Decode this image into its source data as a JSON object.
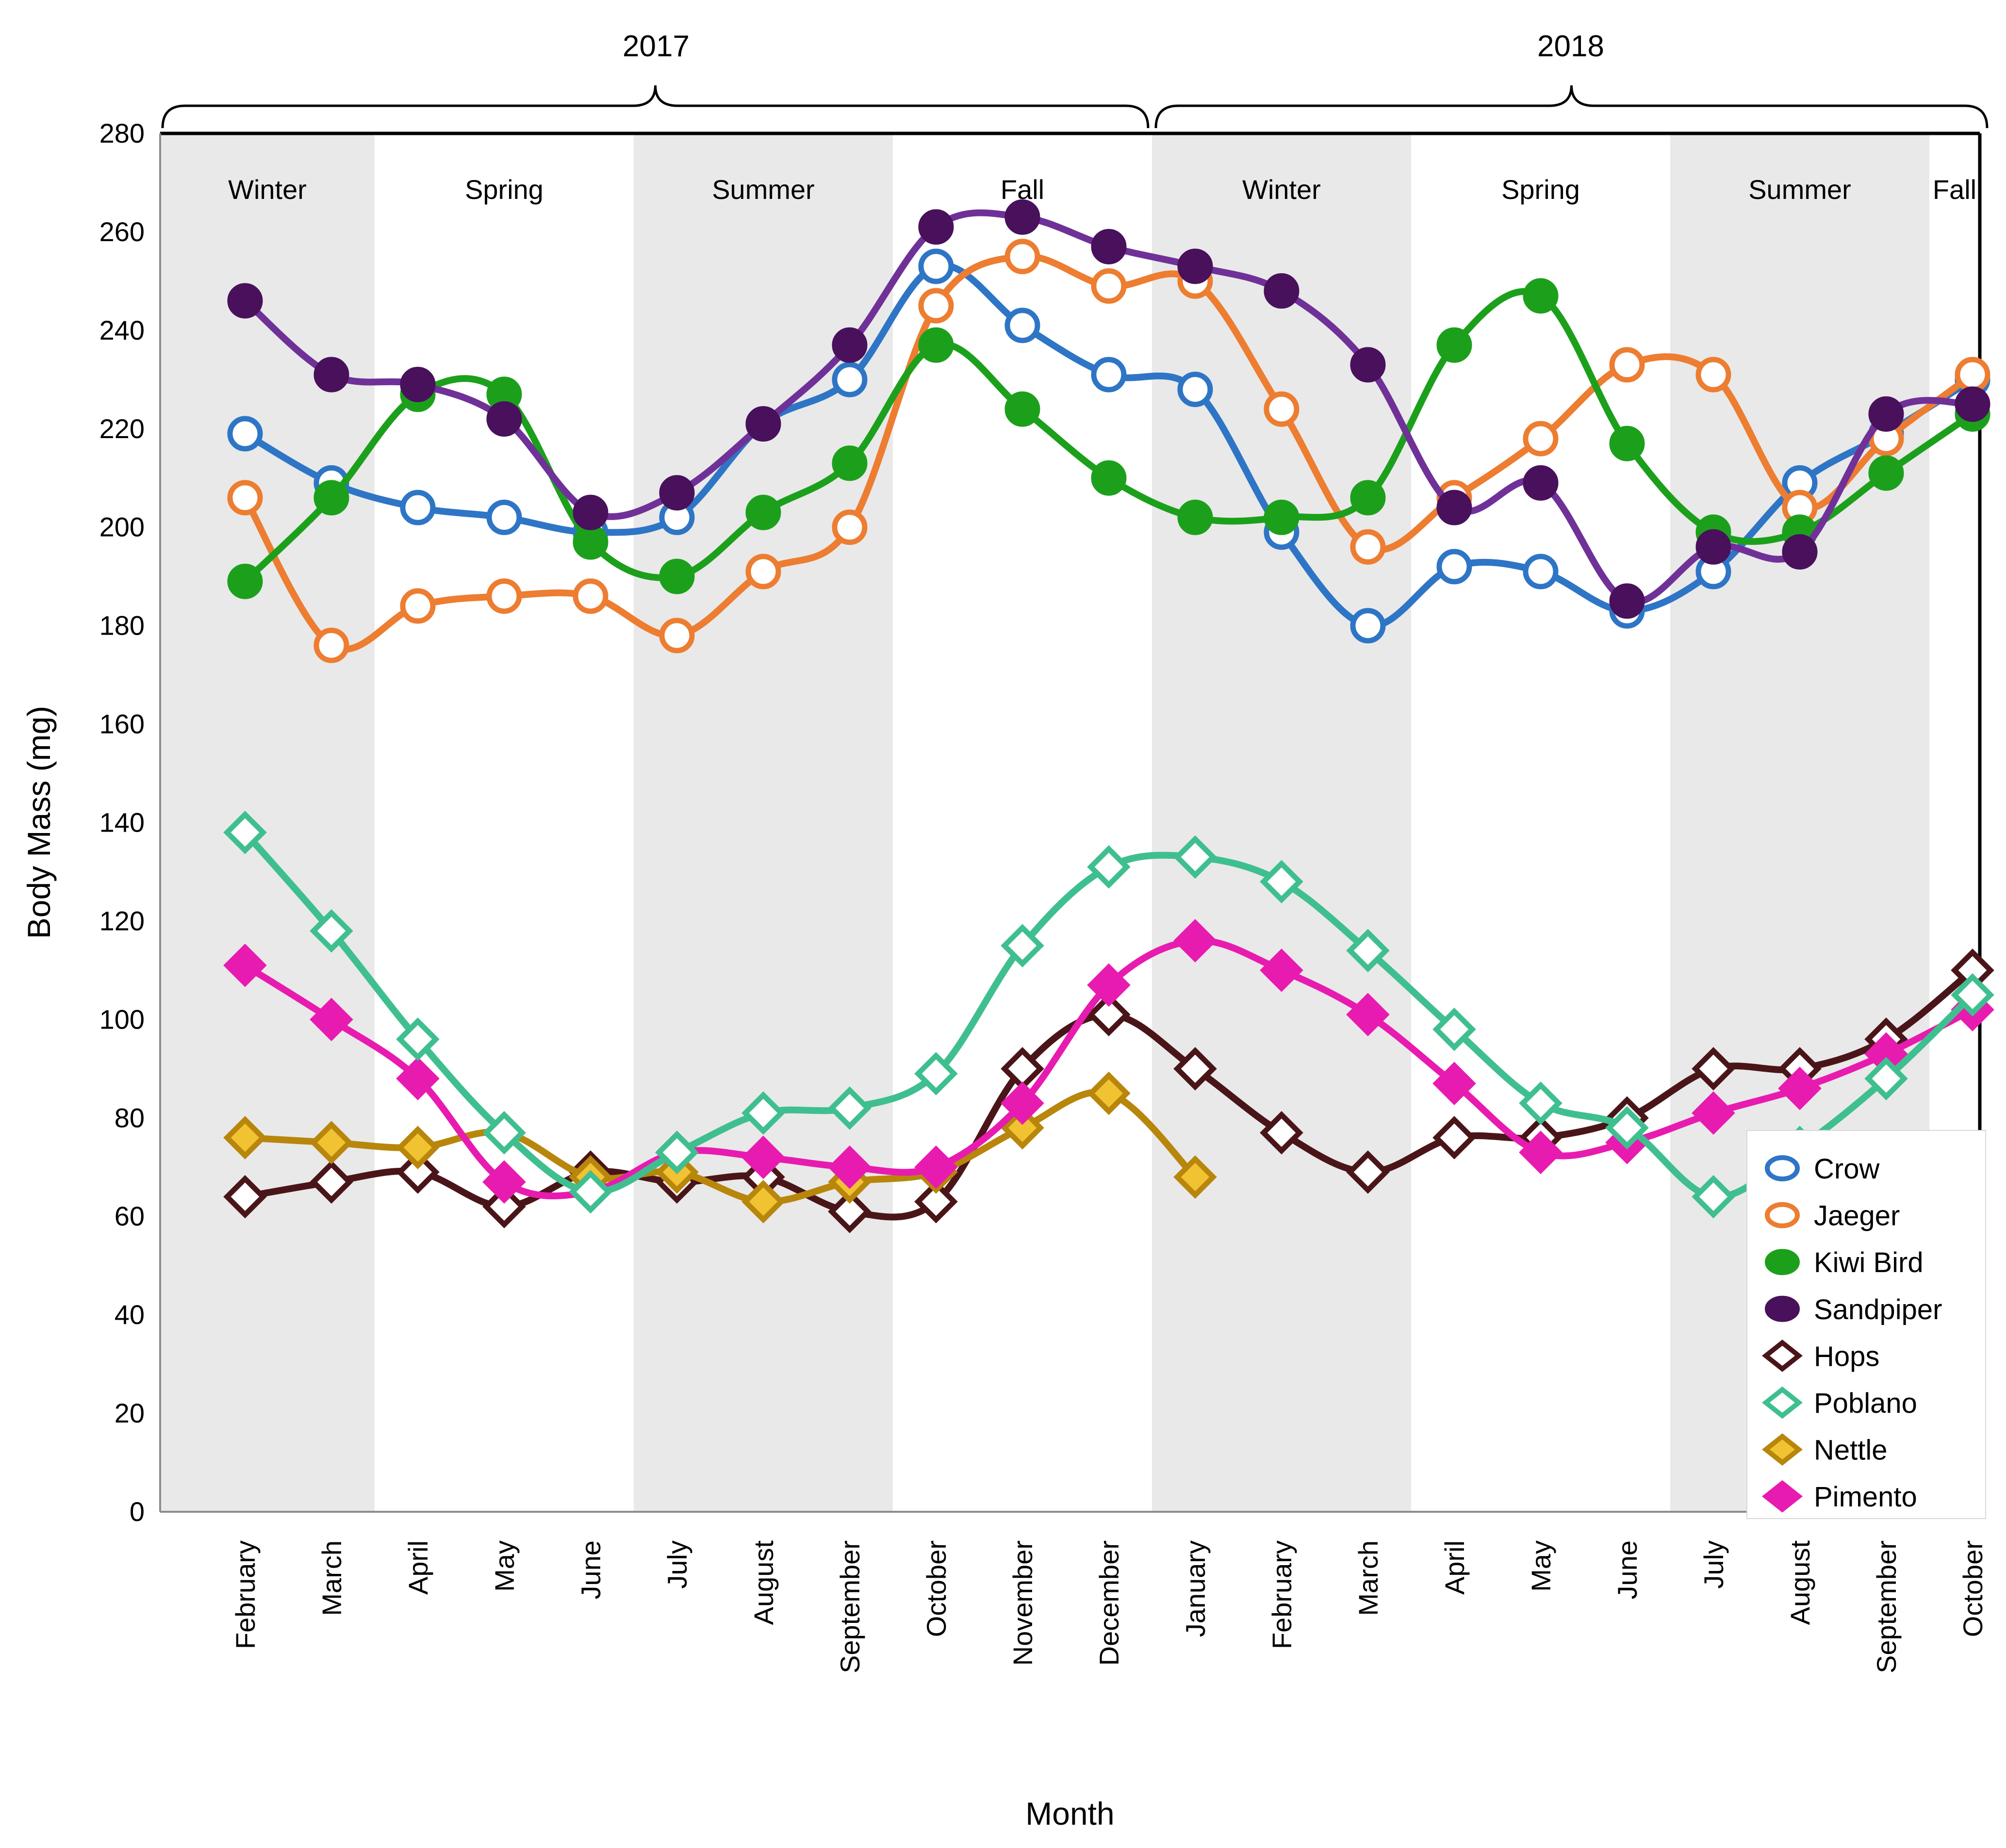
{
  "chart_data": {
    "type": "line",
    "title": "",
    "xlabel": "Month",
    "ylabel": "Body Mass (mg)",
    "ylim": [
      0,
      280
    ],
    "ytick_step": 20,
    "grid": false,
    "x": [
      "February",
      "March",
      "April",
      "May",
      "June",
      "July",
      "August",
      "September",
      "October",
      "November",
      "December",
      "January",
      "February",
      "March",
      "April",
      "May",
      "June",
      "July",
      "August",
      "September",
      "October"
    ],
    "year_brackets": [
      {
        "label": "2017",
        "from_month": 0,
        "to_month": 10
      },
      {
        "label": "2018",
        "from_month": 11,
        "to_month": 20
      }
    ],
    "season_bands": [
      {
        "label": "Winter",
        "shaded": true,
        "from_month": 0,
        "to_month": 1
      },
      {
        "label": "Spring",
        "shaded": false,
        "from_month": 2,
        "to_month": 4
      },
      {
        "label": "Summer",
        "shaded": true,
        "from_month": 5,
        "to_month": 7
      },
      {
        "label": "Fall",
        "shaded": false,
        "from_month": 8,
        "to_month": 10
      },
      {
        "label": "Winter",
        "shaded": true,
        "from_month": 11,
        "to_month": 13
      },
      {
        "label": "Spring",
        "shaded": false,
        "from_month": 14,
        "to_month": 16
      },
      {
        "label": "Summer",
        "shaded": true,
        "from_month": 17,
        "to_month": 19
      },
      {
        "label": "Fall",
        "shaded": false,
        "from_month": 20,
        "to_month": 20
      }
    ],
    "series": [
      {
        "name": "Crow",
        "marker": "circle",
        "fill": "open",
        "color": "#2E75C6",
        "values": [
          219,
          209,
          204,
          202,
          199,
          202,
          221,
          230,
          253,
          241,
          231,
          228,
          199,
          180,
          192,
          191,
          183,
          191,
          209,
          219,
          230
        ]
      },
      {
        "name": "Jaeger",
        "marker": "circle",
        "fill": "open",
        "color": "#ED7D31",
        "values": [
          206,
          176,
          184,
          186,
          186,
          178,
          191,
          200,
          245,
          255,
          249,
          250,
          224,
          196,
          206,
          218,
          233,
          231,
          204,
          218,
          231
        ]
      },
      {
        "name": "Kiwi Bird",
        "marker": "circle",
        "fill": "filled",
        "color": "#1CA01C",
        "values": [
          189,
          206,
          227,
          227,
          197,
          190,
          203,
          213,
          237,
          224,
          210,
          202,
          202,
          206,
          237,
          247,
          217,
          199,
          199,
          211,
          223
        ]
      },
      {
        "name": "Sandpiper",
        "marker": "circle",
        "fill": "filled",
        "color": "#49105C",
        "line_color": "#6F3198",
        "values": [
          246,
          231,
          229,
          222,
          203,
          207,
          221,
          237,
          261,
          263,
          257,
          253,
          248,
          233,
          204,
          209,
          185,
          196,
          195,
          223,
          225
        ]
      },
      {
        "name": "Hops",
        "marker": "diamond",
        "fill": "open",
        "color": "#4A1519",
        "values": [
          64,
          67,
          69,
          62,
          69,
          67,
          68,
          61,
          63,
          90,
          101,
          90,
          77,
          69,
          76,
          76,
          80,
          90,
          90,
          96,
          110
        ]
      },
      {
        "name": "Poblano",
        "marker": "diamond",
        "fill": "open",
        "color": "#3FBF8F",
        "values": [
          138,
          118,
          96,
          77,
          65,
          73,
          81,
          82,
          89,
          115,
          131,
          133,
          128,
          114,
          98,
          83,
          78,
          64,
          74,
          88,
          105
        ]
      },
      {
        "name": "Nettle",
        "marker": "diamond",
        "fill": "filled",
        "color": "#F1C232",
        "line_color": "#B8860B",
        "stroke_color": "#B8860B",
        "values": [
          76,
          75,
          74,
          77,
          68,
          69,
          63,
          67,
          69,
          78,
          85,
          68,
          null,
          null,
          null,
          null,
          null,
          null,
          null,
          null,
          null
        ]
      },
      {
        "name": "Pimento",
        "marker": "diamond",
        "fill": "filled",
        "color": "#E81BB0",
        "values": [
          111,
          100,
          88,
          67,
          65,
          73,
          72,
          70,
          70,
          83,
          107,
          116,
          110,
          101,
          87,
          73,
          75,
          81,
          86,
          93,
          102
        ]
      }
    ],
    "draw_order": [
      "Crow",
      "Jaeger",
      "Kiwi Bird",
      "Sandpiper",
      "Hops",
      "Nettle",
      "Pimento",
      "Poblano"
    ],
    "legend": {
      "position": "inside-bottom-right",
      "items": [
        "Crow",
        "Jaeger",
        "Kiwi Bird",
        "Sandpiper",
        "Hops",
        "Poblano",
        "Nettle",
        "Pimento"
      ]
    }
  },
  "colors": {
    "band_shade": "#E9E9E9",
    "plot_border_dark": "#000000",
    "plot_border_gray": "#8C8C8C",
    "legend_border": "#D8D8D8",
    "text": "#000000",
    "background": "#FFFFFF"
  }
}
